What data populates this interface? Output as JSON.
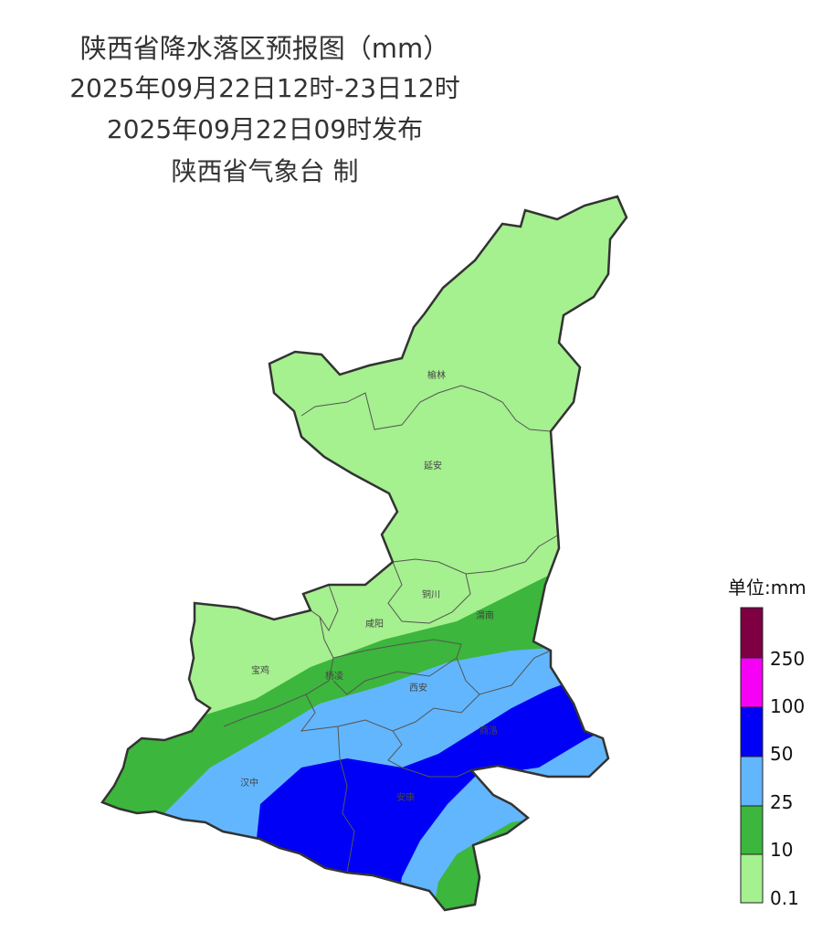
{
  "title": {
    "line1": "陕西省降水落区预报图（mm）",
    "line2": "2025年09月22日12时-23日12时",
    "line3": "2025年09月22日09时发布",
    "line4": "陕西省气象台 制"
  },
  "cities": [
    "榆林",
    "延安",
    "铜川",
    "咸阳",
    "渭南",
    "宝鸡",
    "杨凌",
    "西安",
    "商洛",
    "汉中",
    "安康"
  ],
  "legend": {
    "title": "单位:mm",
    "colors": [
      "#a5f08f",
      "#3cb63c",
      "#62b6fd",
      "#0000f6",
      "#f600f6",
      "#7e0043"
    ],
    "labels": [
      "0.1",
      "10",
      "25",
      "50",
      "100",
      "250"
    ]
  }
}
